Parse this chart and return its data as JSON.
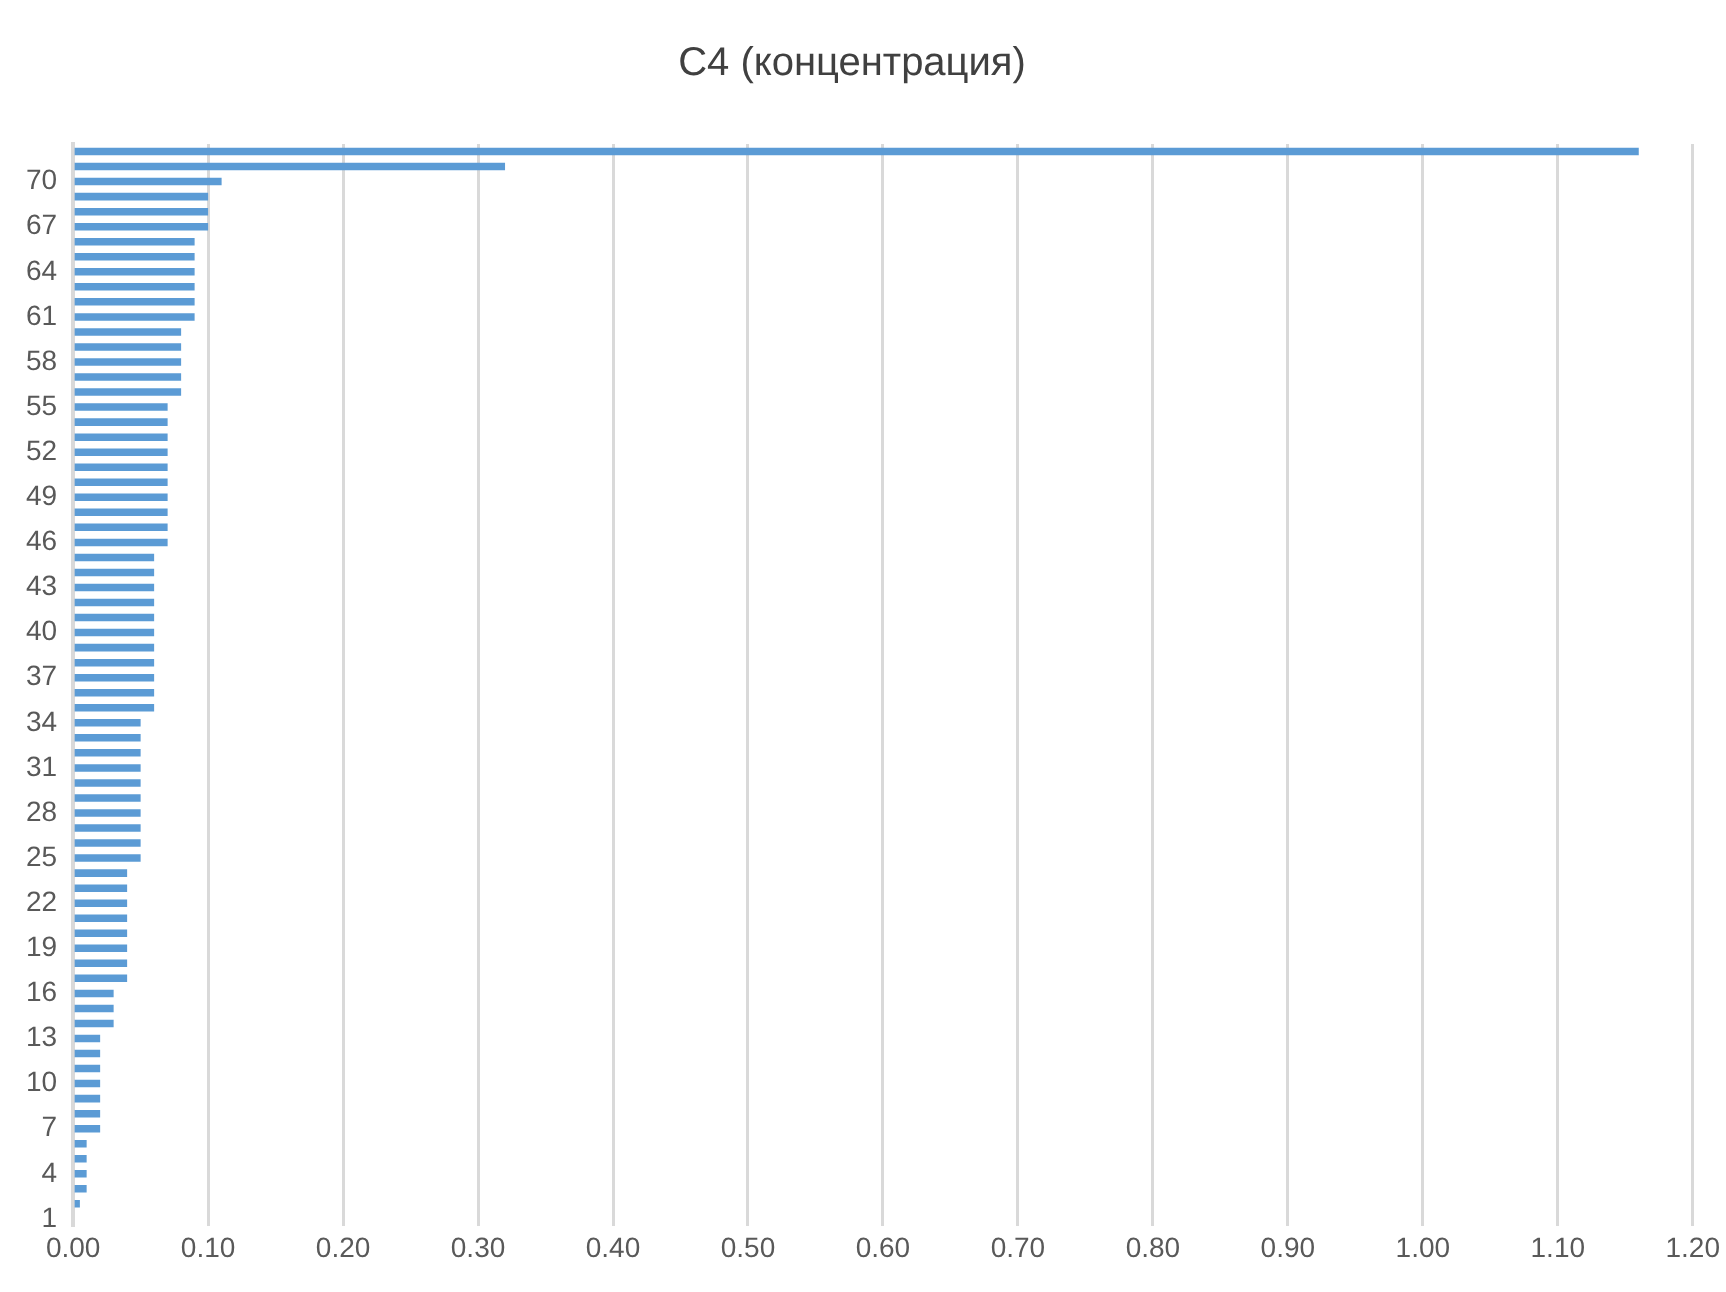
{
  "chart_data": {
    "type": "bar",
    "orientation": "horizontal",
    "title": "C4 (концентрация)",
    "categories": [
      null,
      null,
      "70",
      null,
      null,
      "67",
      null,
      null,
      "64",
      null,
      null,
      "61",
      null,
      null,
      "58",
      null,
      null,
      "55",
      null,
      null,
      "52",
      null,
      null,
      "49",
      null,
      null,
      "46",
      null,
      null,
      "43",
      null,
      null,
      "40",
      null,
      null,
      "37",
      null,
      null,
      "34",
      null,
      null,
      "31",
      null,
      null,
      "28",
      null,
      null,
      "25",
      null,
      null,
      "22",
      null,
      null,
      "19",
      null,
      null,
      "16",
      null,
      null,
      "13",
      null,
      null,
      "10",
      null,
      null,
      "7",
      null,
      null,
      "4",
      null,
      null,
      "1"
    ],
    "values": [
      1.16,
      0.32,
      0.11,
      0.1,
      0.1,
      0.1,
      0.09,
      0.09,
      0.09,
      0.09,
      0.09,
      0.09,
      0.08,
      0.08,
      0.08,
      0.08,
      0.08,
      0.07,
      0.07,
      0.07,
      0.07,
      0.07,
      0.07,
      0.07,
      0.07,
      0.07,
      0.07,
      0.06,
      0.06,
      0.06,
      0.06,
      0.06,
      0.06,
      0.06,
      0.06,
      0.06,
      0.06,
      0.06,
      0.05,
      0.05,
      0.05,
      0.05,
      0.05,
      0.05,
      0.05,
      0.05,
      0.05,
      0.05,
      0.04,
      0.04,
      0.04,
      0.04,
      0.04,
      0.04,
      0.04,
      0.04,
      0.03,
      0.03,
      0.03,
      0.02,
      0.02,
      0.02,
      0.02,
      0.02,
      0.02,
      0.02,
      0.01,
      0.01,
      0.01,
      0.01,
      0.005,
      0
    ],
    "color": "#5b9bd5",
    "xlim": [
      0,
      1.2
    ],
    "xticks": [
      {
        "value": 0,
        "label": "0.00"
      },
      {
        "value": 0.1,
        "label": "0.10"
      },
      {
        "value": 0.2,
        "label": "0.20"
      },
      {
        "value": 0.3,
        "label": "0.30"
      },
      {
        "value": 0.4,
        "label": "0.40"
      },
      {
        "value": 0.5,
        "label": "0.50"
      },
      {
        "value": 0.6,
        "label": "0.60"
      },
      {
        "value": 0.7,
        "label": "0.70"
      },
      {
        "value": 0.8,
        "label": "0.80"
      },
      {
        "value": 0.9,
        "label": "0.90"
      },
      {
        "value": 1.0,
        "label": "1.00"
      },
      {
        "value": 1.1,
        "label": "1.10"
      },
      {
        "value": 1.2,
        "label": "1.20"
      }
    ],
    "grid": "x",
    "legend": false
  }
}
